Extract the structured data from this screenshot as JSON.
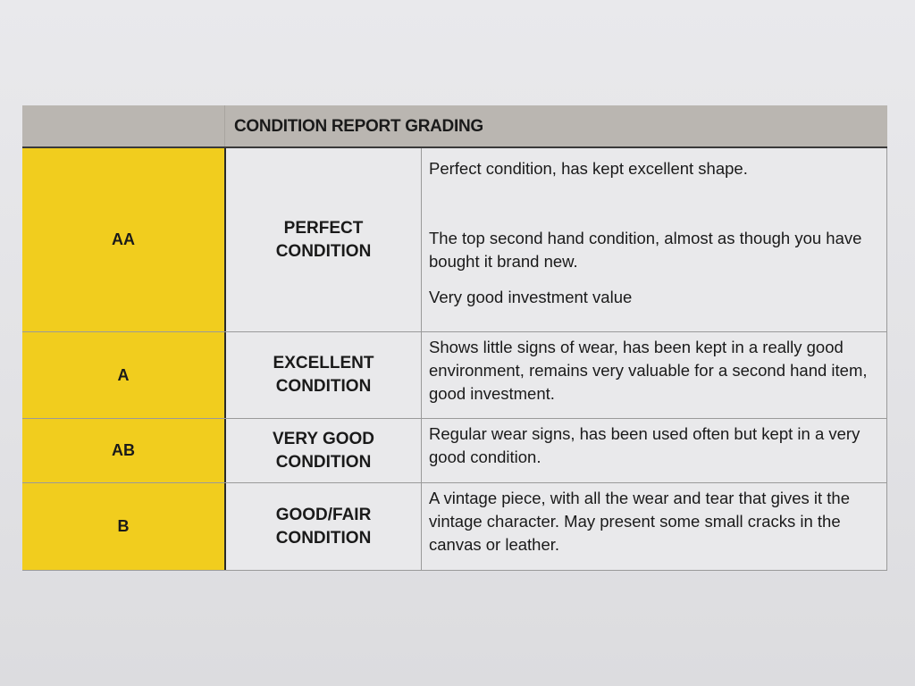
{
  "title": "CONDITION REPORT GRADING",
  "colors": {
    "grade_fill": "#f1cd1e",
    "header_fill": "#bab6b1"
  },
  "rows": [
    {
      "grade": "AA",
      "condition": [
        "PERFECT",
        "CONDITION"
      ],
      "description": [
        "Perfect condition, has kept excellent shape.",
        "The top second hand condition, almost as though you have bought it brand new.",
        "Very good investment value"
      ]
    },
    {
      "grade": "A",
      "condition": [
        "EXCELLENT",
        "CONDITION"
      ],
      "description": [
        "Shows little signs of wear, has been kept in a really good environment, remains very valuable for a second hand item, good investment."
      ]
    },
    {
      "grade": "AB",
      "condition": [
        "VERY GOOD",
        "CONDITION"
      ],
      "description": [
        "Regular wear signs, has been used often but kept in a very good condition."
      ]
    },
    {
      "grade": "B",
      "condition": [
        "GOOD/FAIR",
        "CONDITION"
      ],
      "description": [
        "A vintage piece, with all the wear and tear that gives it the vintage character. May present some small cracks in the canvas or leather."
      ]
    }
  ]
}
